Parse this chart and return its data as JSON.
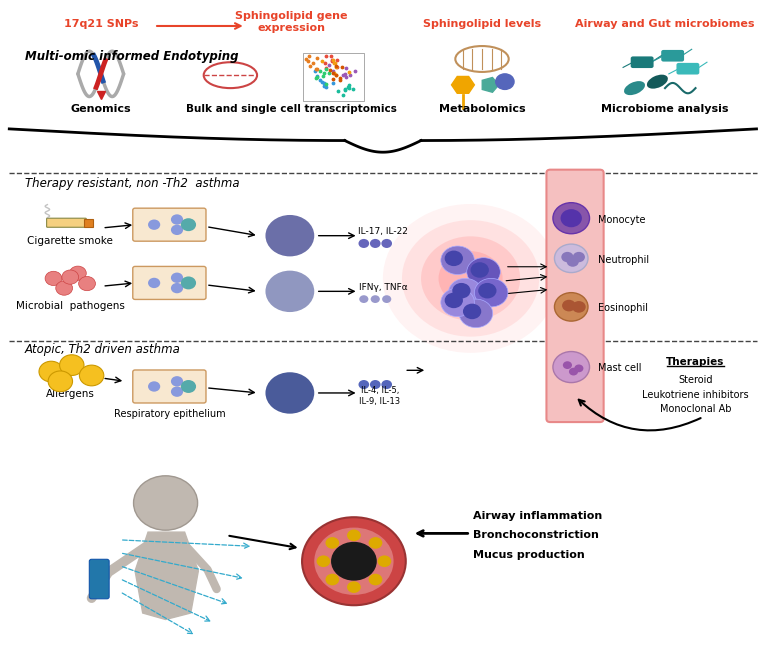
{
  "bg_color": "#ffffff",
  "top_labels": {
    "snp_label": "17q21 SNPs",
    "snp_color": "#e8442a",
    "sphingo_gene_label": "Sphingolipid gene\nexpression",
    "sphingo_gene_color": "#e8442a",
    "sphingo_levels_label": "Sphingolipid levels",
    "sphingo_levels_color": "#e8442a",
    "microbiome_label": "Airway and Gut microbiomes",
    "microbiome_color": "#e8442a"
  },
  "section_labels": {
    "multi_omic": "Multi-omic informed Endotyping",
    "genomics": "Genomics",
    "transcriptomics": "Bulk and single cell transcriptomics",
    "metabolomics": "Metabolomics",
    "microbiome_analysis": "Microbiome analysis"
  },
  "therapy_resistant": {
    "label": "Therapy resistant, non -Th2  asthma",
    "cig_label": "Cigarette smoke",
    "microbial_label": "Microbial  pathogens",
    "il17_label": "IL-17, IL-22",
    "ifng_label": "IFNγ, TNFα",
    "monocyte_label": "Monocyte",
    "neutrophil_label": "Neutrophil",
    "eosinophil_label": "Eosinophil"
  },
  "atopic": {
    "label": "Atopic, Th2 driven asthma",
    "allergen_label": "Allergens",
    "epithelium_label": "Respiratory epithelium",
    "il4_label": "IL-4, IL-5,\nIL-9, IL-13",
    "mast_label": "Mast cell",
    "therapies_label": "Therapies",
    "steroid_label": "Steroid",
    "leukotriene_label": "Leukotriene inhibitors",
    "monoclonal_label": "Monoclonal Ab"
  },
  "bottom": {
    "airway_inflammation": "Airway inflammation",
    "bronchoconstriction": "Bronchoconstriction",
    "mucus_production": "Mucus production"
  },
  "colors": {
    "th17_bg": "#6b6fa8",
    "th1_bg": "#9097c0",
    "th2_bg": "#4a5b9a",
    "arrow_red": "#e8442a",
    "pink_vessel": "#f5c0c0"
  }
}
